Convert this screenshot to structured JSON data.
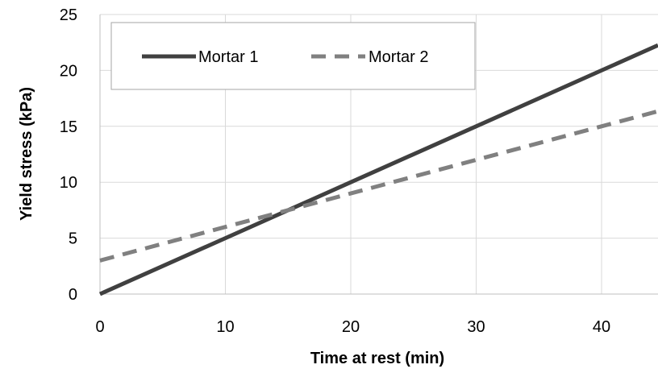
{
  "chart_data": {
    "type": "line",
    "xlabel": "Time at rest (min)",
    "ylabel": "Yield stress (kPa)",
    "xlim": [
      0,
      44.5
    ],
    "ylim": [
      0,
      25
    ],
    "x_ticks": [
      "0",
      "10",
      "20",
      "30",
      "40"
    ],
    "y_ticks": [
      "0",
      "5",
      "10",
      "15",
      "20",
      "25"
    ],
    "grid": true,
    "legend_position": "top-left",
    "series": [
      {
        "name": "Mortar 1",
        "style": "solid",
        "color": "#404040",
        "x": [
          0,
          10,
          20,
          30,
          40,
          44.5
        ],
        "y": [
          0,
          5,
          10,
          15,
          20,
          22.25
        ]
      },
      {
        "name": "Mortar 2",
        "style": "dashed",
        "color": "#808080",
        "x": [
          0,
          10,
          20,
          30,
          40,
          44.5
        ],
        "y": [
          3,
          6,
          9,
          12,
          15,
          16.35
        ]
      }
    ]
  }
}
